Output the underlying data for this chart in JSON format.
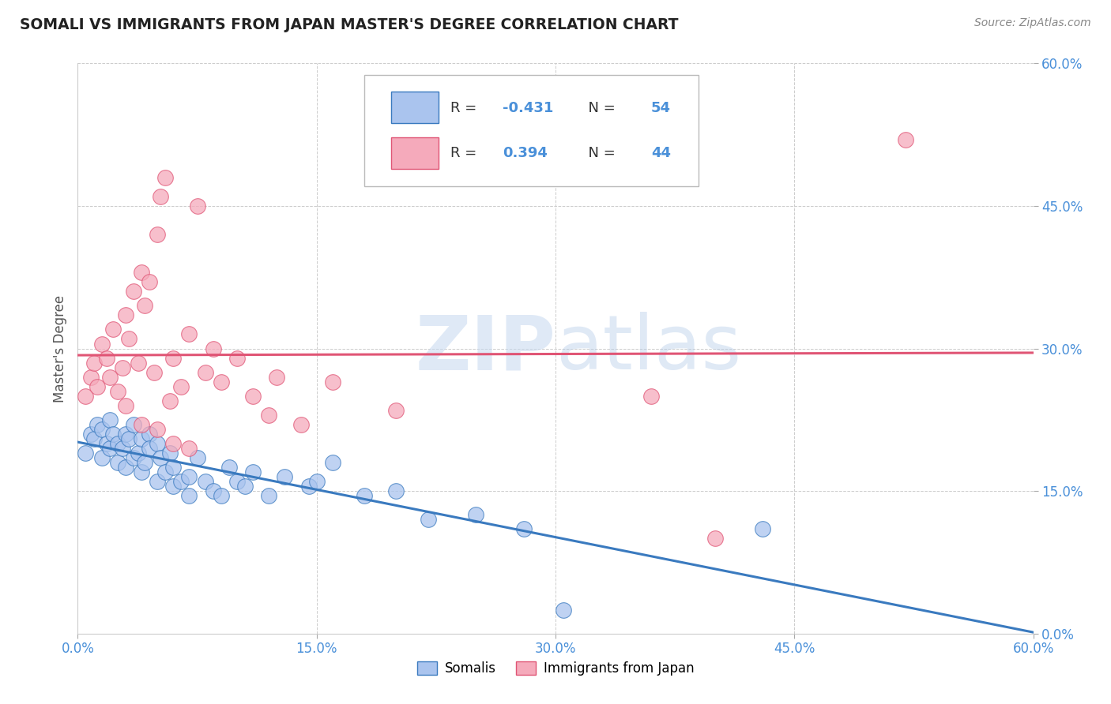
{
  "title": "SOMALI VS IMMIGRANTS FROM JAPAN MASTER'S DEGREE CORRELATION CHART",
  "source": "Source: ZipAtlas.com",
  "ylabel": "Master's Degree",
  "xlim": [
    0.0,
    60.0
  ],
  "ylim": [
    0.0,
    60.0
  ],
  "yticks": [
    0.0,
    15.0,
    30.0,
    45.0,
    60.0
  ],
  "xticks": [
    0.0,
    15.0,
    30.0,
    45.0,
    60.0
  ],
  "legend_labels": [
    "Somalis",
    "Immigrants from Japan"
  ],
  "watermark_zip": "ZIP",
  "watermark_atlas": "atlas",
  "blue_R": -0.431,
  "blue_N": 54,
  "pink_R": 0.394,
  "pink_N": 44,
  "blue_color": "#aac4ee",
  "pink_color": "#f5aabb",
  "blue_line_color": "#3a7abf",
  "pink_line_color": "#e05575",
  "background_color": "#ffffff",
  "grid_color": "#cccccc",
  "blue_scatter_x": [
    0.5,
    0.8,
    1.0,
    1.2,
    1.5,
    1.5,
    1.8,
    2.0,
    2.0,
    2.2,
    2.5,
    2.5,
    2.8,
    3.0,
    3.0,
    3.2,
    3.5,
    3.5,
    3.8,
    4.0,
    4.0,
    4.2,
    4.5,
    4.5,
    5.0,
    5.0,
    5.2,
    5.5,
    5.8,
    6.0,
    6.0,
    6.5,
    7.0,
    7.0,
    7.5,
    8.0,
    8.5,
    9.0,
    9.5,
    10.0,
    10.5,
    11.0,
    12.0,
    13.0,
    14.5,
    15.0,
    16.0,
    18.0,
    20.0,
    22.0,
    25.0,
    28.0,
    30.5,
    43.0
  ],
  "blue_scatter_y": [
    19.0,
    21.0,
    20.5,
    22.0,
    18.5,
    21.5,
    20.0,
    19.5,
    22.5,
    21.0,
    18.0,
    20.0,
    19.5,
    17.5,
    21.0,
    20.5,
    18.5,
    22.0,
    19.0,
    17.0,
    20.5,
    18.0,
    21.0,
    19.5,
    16.0,
    20.0,
    18.5,
    17.0,
    19.0,
    17.5,
    15.5,
    16.0,
    16.5,
    14.5,
    18.5,
    16.0,
    15.0,
    14.5,
    17.5,
    16.0,
    15.5,
    17.0,
    14.5,
    16.5,
    15.5,
    16.0,
    18.0,
    14.5,
    15.0,
    12.0,
    12.5,
    11.0,
    2.5,
    11.0
  ],
  "pink_scatter_x": [
    0.5,
    0.8,
    1.0,
    1.2,
    1.5,
    1.8,
    2.0,
    2.2,
    2.5,
    2.8,
    3.0,
    3.2,
    3.5,
    3.8,
    4.0,
    4.2,
    4.5,
    4.8,
    5.0,
    5.2,
    5.5,
    5.8,
    6.0,
    6.5,
    7.0,
    7.5,
    8.0,
    8.5,
    9.0,
    10.0,
    11.0,
    12.0,
    12.5,
    14.0,
    16.0,
    20.0,
    36.0,
    40.0,
    52.0,
    3.0,
    4.0,
    5.0,
    6.0,
    7.0
  ],
  "pink_scatter_y": [
    25.0,
    27.0,
    28.5,
    26.0,
    30.5,
    29.0,
    27.0,
    32.0,
    25.5,
    28.0,
    33.5,
    31.0,
    36.0,
    28.5,
    38.0,
    34.5,
    37.0,
    27.5,
    42.0,
    46.0,
    48.0,
    24.5,
    29.0,
    26.0,
    31.5,
    45.0,
    27.5,
    30.0,
    26.5,
    29.0,
    25.0,
    23.0,
    27.0,
    22.0,
    26.5,
    23.5,
    25.0,
    10.0,
    52.0,
    24.0,
    22.0,
    21.5,
    20.0,
    19.5
  ]
}
